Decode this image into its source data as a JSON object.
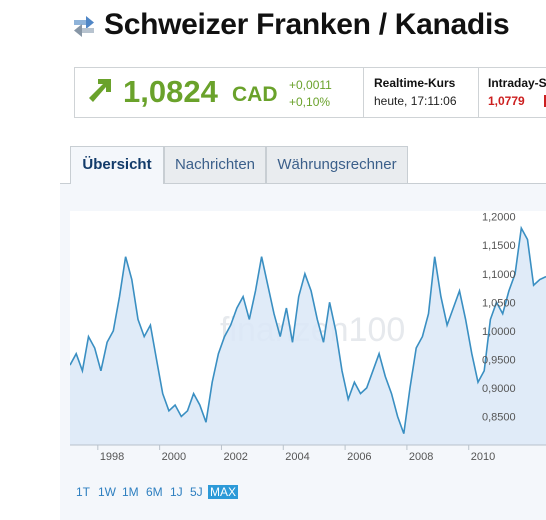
{
  "header": {
    "title": "Schweizer Franken / Kanadis",
    "title_icon": "swap-arrows-icon"
  },
  "quote": {
    "arrow_icon": "up-arrow-icon",
    "price": "1,0824",
    "currency": "CAD",
    "change_abs": "+0,0011",
    "change_pct": "+0,10%",
    "realtime_label": "Realtime-Kurs",
    "realtime_time": "heute, 17:11:06",
    "intraday_label": "Intraday-S",
    "intraday_value": "1,0779",
    "up_color": "#6aa22b",
    "down_color": "#cc1f1f"
  },
  "tabs": [
    {
      "label": "Übersicht",
      "active": true
    },
    {
      "label": "Nachrichten",
      "active": false
    },
    {
      "label": "Währungsrechner",
      "active": false
    }
  ],
  "chart_data": {
    "type": "area",
    "watermark": "finanzen100",
    "line_color": "#3a8fc2",
    "fill_color": "#dbe8f7",
    "grid": false,
    "xlim": [
      1997.1,
      2012.5
    ],
    "ylim": [
      0.8,
      1.21
    ],
    "x_ticks": [
      "1998",
      "2000",
      "2002",
      "2004",
      "2006",
      "2008",
      "2010"
    ],
    "y_ticks": [
      "1,2000",
      "1,1500",
      "1,1000",
      "1,0500",
      "1,0000",
      "0,9500",
      "0,9000",
      "0,8500"
    ],
    "x": [
      1997.1,
      1997.3,
      1997.5,
      1997.7,
      1997.9,
      1998.1,
      1998.3,
      1998.5,
      1998.7,
      1998.9,
      1999.1,
      1999.3,
      1999.5,
      1999.7,
      1999.9,
      2000.1,
      2000.3,
      2000.5,
      2000.7,
      2000.9,
      2001.1,
      2001.3,
      2001.5,
      2001.7,
      2001.9,
      2002.1,
      2002.3,
      2002.5,
      2002.7,
      2002.9,
      2003.1,
      2003.3,
      2003.5,
      2003.7,
      2003.9,
      2004.1,
      2004.3,
      2004.5,
      2004.7,
      2004.9,
      2005.1,
      2005.3,
      2005.5,
      2005.7,
      2005.9,
      2006.1,
      2006.3,
      2006.5,
      2006.7,
      2006.9,
      2007.1,
      2007.3,
      2007.5,
      2007.7,
      2007.9,
      2008.1,
      2008.3,
      2008.5,
      2008.7,
      2008.9,
      2009.1,
      2009.3,
      2009.5,
      2009.7,
      2009.9,
      2010.1,
      2010.3,
      2010.5,
      2010.7,
      2010.9,
      2011.1,
      2011.3,
      2011.5,
      2011.7,
      2011.9,
      2012.1,
      2012.3,
      2012.5
    ],
    "y": [
      0.94,
      0.96,
      0.93,
      0.99,
      0.97,
      0.93,
      0.98,
      1.0,
      1.06,
      1.13,
      1.09,
      1.02,
      0.99,
      1.01,
      0.95,
      0.89,
      0.86,
      0.87,
      0.85,
      0.86,
      0.89,
      0.87,
      0.84,
      0.91,
      0.96,
      0.99,
      1.01,
      1.04,
      1.06,
      1.02,
      1.07,
      1.13,
      1.08,
      1.03,
      0.99,
      1.04,
      0.98,
      1.06,
      1.1,
      1.07,
      1.02,
      0.98,
      1.05,
      1.0,
      0.93,
      0.88,
      0.91,
      0.89,
      0.9,
      0.93,
      0.96,
      0.92,
      0.89,
      0.85,
      0.82,
      0.9,
      0.97,
      0.99,
      1.03,
      1.13,
      1.06,
      1.01,
      1.04,
      1.07,
      1.02,
      0.96,
      0.91,
      0.93,
      1.02,
      1.05,
      1.03,
      1.07,
      1.1,
      1.18,
      1.16,
      1.08,
      1.09,
      1.095
    ]
  },
  "range_buttons": [
    {
      "label": "1T",
      "active": false
    },
    {
      "label": "1W",
      "active": false
    },
    {
      "label": "1M",
      "active": false
    },
    {
      "label": "6M",
      "active": false
    },
    {
      "label": "1J",
      "active": false
    },
    {
      "label": "5J",
      "active": false
    },
    {
      "label": "MAX",
      "active": true
    }
  ]
}
